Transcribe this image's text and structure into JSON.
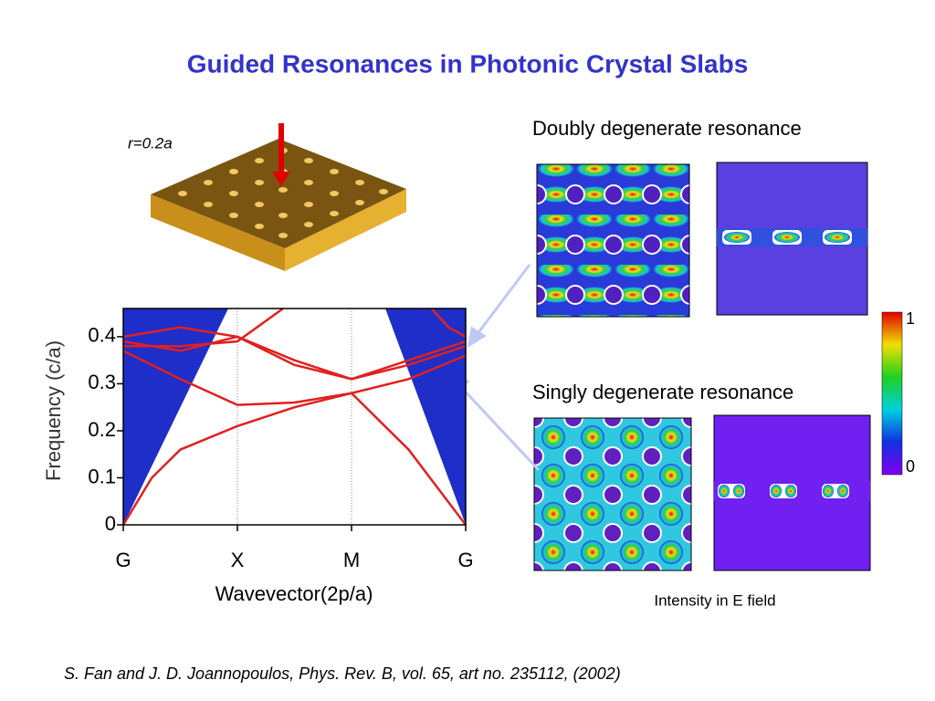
{
  "slide": {
    "title": "Guided Resonances in Photonic Crystal Slabs",
    "slab_label": "r=0.2a",
    "doubly_label": "Doubly degenerate resonance",
    "singly_label": "Singly degenerate resonance",
    "colorbar_max": "1",
    "colorbar_min": "0",
    "colorbar_caption": "Intensity in E field",
    "citation": "S. Fan and J. D. Joannopoulos, Phys. Rev. B,  vol. 65, art  no. 235112, (2002)"
  },
  "chart_data": {
    "type": "line",
    "xlabel": "Wavevector(2p/a)",
    "ylabel": "Frequency (c/a)",
    "xlim": [
      0,
      3
    ],
    "ylim": [
      0,
      0.46
    ],
    "xticks": [
      {
        "value": 0,
        "label": "G"
      },
      {
        "value": 1,
        "label": "X"
      },
      {
        "value": 2,
        "label": "M"
      },
      {
        "value": 3,
        "label": "G"
      }
    ],
    "yticks": [
      0,
      0.1,
      0.2,
      0.3,
      0.4
    ],
    "grid": true,
    "series": [
      {
        "color": "#e02020",
        "x": [
          0,
          0.25,
          0.5,
          1,
          1.5,
          2,
          2.5,
          3
        ],
        "values": [
          0,
          0.1,
          0.16,
          0.21,
          0.25,
          0.28,
          0.16,
          0
        ]
      },
      {
        "color": "#e02020",
        "x": [
          0,
          0.5,
          1,
          1.5,
          2,
          2.5,
          3
        ],
        "values": [
          0.37,
          0.31,
          0.255,
          0.26,
          0.28,
          0.31,
          0.36
        ]
      },
      {
        "color": "#e02020",
        "x": [
          0,
          0.5,
          1,
          1.5,
          2,
          2.5,
          3
        ],
        "values": [
          0.39,
          0.37,
          0.4,
          0.35,
          0.31,
          0.34,
          0.38
        ]
      },
      {
        "color": "#e02020",
        "x": [
          0,
          0.5,
          1,
          1.4
        ],
        "values": [
          0.38,
          0.38,
          0.39,
          0.46
        ]
      },
      {
        "color": "#e02020",
        "x": [
          0,
          0.5,
          1,
          1.5,
          2,
          2.5,
          3
        ],
        "values": [
          0.4,
          0.42,
          0.4,
          0.34,
          0.31,
          0.35,
          0.39
        ]
      },
      {
        "color": "#e02020",
        "x": [
          2.7,
          2.85,
          3
        ],
        "values": [
          0.46,
          0.42,
          0.4
        ]
      }
    ]
  }
}
